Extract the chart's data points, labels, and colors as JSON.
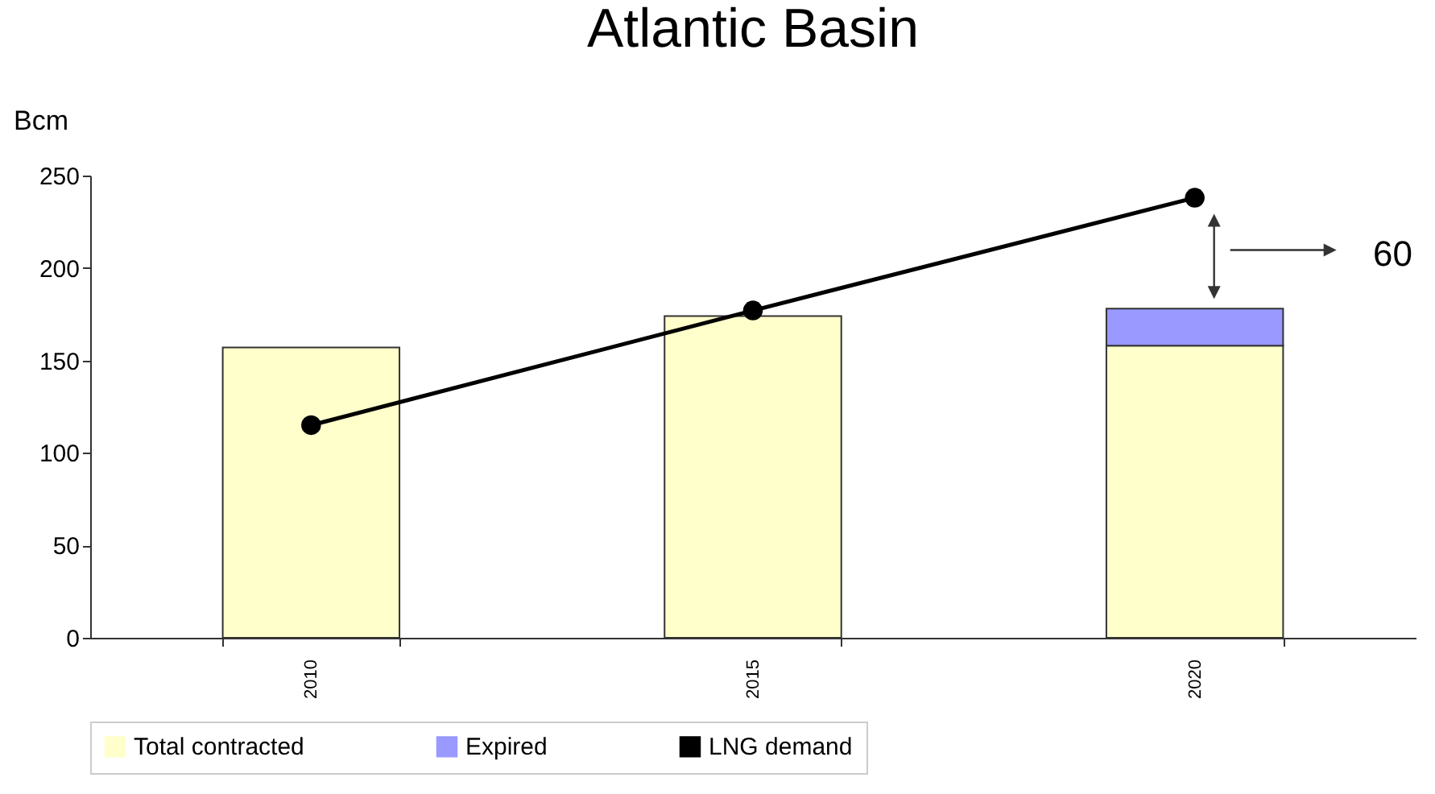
{
  "chart_data": {
    "type": "bar",
    "title": "Atlantic Basin",
    "ylabel": "Bcm",
    "categories": [
      "2010",
      "2015",
      "2020"
    ],
    "stacked": true,
    "series": [
      {
        "name": "Total contracted",
        "color": "#ffffcc",
        "values": [
          157,
          174,
          158
        ]
      },
      {
        "name": "Expired",
        "color": "#9999ff",
        "values": [
          null,
          null,
          20
        ]
      },
      {
        "name": "LNG demand",
        "type": "line",
        "color": "#000000",
        "marker": "circle",
        "values": [
          115,
          177,
          238
        ]
      }
    ],
    "annotations": [
      "60"
    ],
    "ylim": [
      0,
      250
    ],
    "yticks": [
      0,
      50,
      100,
      150,
      200,
      250
    ],
    "grid": false,
    "legend": "bottom"
  }
}
